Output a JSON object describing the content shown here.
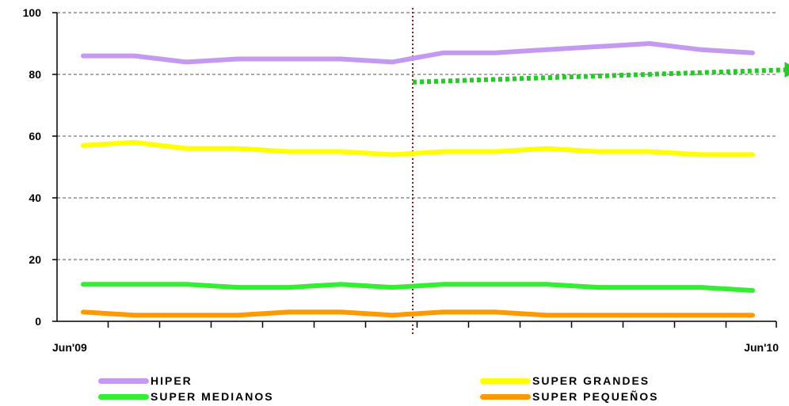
{
  "chart_data": {
    "type": "line",
    "x_tick_labels": {
      "start": "Jun'09",
      "end": "Jun'10"
    },
    "x_count": 14,
    "ylim": [
      0,
      100
    ],
    "yticks": [
      0,
      20,
      40,
      60,
      80,
      100
    ],
    "grid": "horizontal dashed",
    "series": [
      {
        "name": "HIPER",
        "color": "#c39af0",
        "values": [
          86,
          86,
          84,
          85,
          85,
          85,
          84,
          87,
          87,
          88,
          89,
          90,
          88,
          87
        ]
      },
      {
        "name": "SUPER GRANDES",
        "color": "#ffff00",
        "values": [
          57,
          58,
          56,
          56,
          55,
          55,
          54,
          55,
          55,
          56,
          55,
          55,
          54,
          54
        ]
      },
      {
        "name": "SUPER MEDIANOS",
        "color": "#33ee33",
        "values": [
          12,
          12,
          12,
          11,
          11,
          12,
          11,
          12,
          12,
          12,
          11,
          11,
          11,
          10
        ]
      },
      {
        "name": "SUPER PEQUEÑOS",
        "color": "#ff9900",
        "values": [
          3,
          2,
          2,
          2,
          3,
          3,
          2,
          3,
          3,
          2,
          2,
          2,
          2,
          2
        ]
      }
    ],
    "reference_line": {
      "x_index": 6.4,
      "color": "#8b1a1a",
      "style": "dotted"
    },
    "trend_arrow": {
      "from": [
        6.4,
        77.5
      ],
      "to": [
        13.9,
        81.5
      ],
      "color": "#22cc22",
      "style": "dotted"
    },
    "legend_position": "bottom"
  }
}
